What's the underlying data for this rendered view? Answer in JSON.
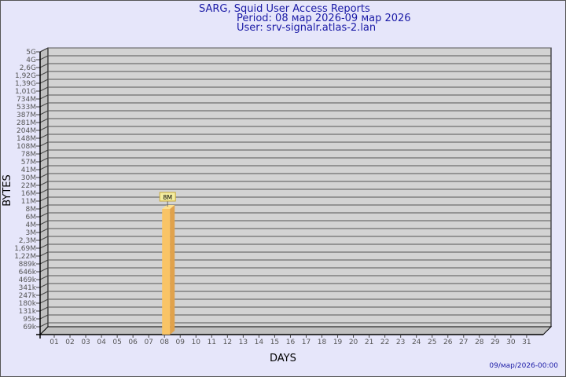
{
  "header": {
    "title": "SARG, Squid User Access Reports",
    "period": "Period: 08 мар 2026-09 мар 2026",
    "user": "User: srv-signalr.atlas-2.lan"
  },
  "footer": {
    "timestamp": "09/мар/2026-00:00"
  },
  "colors": {
    "background": "#e6e6fa",
    "plot": "#d3d3d3",
    "bar": "#f9c466",
    "bar_side": "#e0a24c",
    "text": "#1a1aa6"
  },
  "chart_data": {
    "type": "bar",
    "xlabel": "DAYS",
    "ylabel": "BYTES",
    "y_scale": "log",
    "y_tick_labels": [
      "5G",
      "4G",
      "2,6G",
      "1,92G",
      "1,39G",
      "1,01G",
      "734M",
      "533M",
      "387M",
      "281M",
      "204M",
      "148M",
      "108M",
      "78M",
      "57M",
      "41M",
      "30M",
      "22M",
      "16M",
      "11M",
      "8M",
      "6M",
      "4M",
      "3M",
      "2,3M",
      "1,69M",
      "1,22M",
      "889k",
      "646k",
      "469k",
      "341k",
      "247k",
      "180k",
      "131k",
      "95k",
      "69k"
    ],
    "categories": [
      "01",
      "02",
      "03",
      "04",
      "05",
      "06",
      "07",
      "08",
      "09",
      "10",
      "11",
      "12",
      "13",
      "14",
      "15",
      "16",
      "17",
      "18",
      "19",
      "20",
      "21",
      "22",
      "23",
      "24",
      "25",
      "26",
      "27",
      "28",
      "29",
      "30",
      "31"
    ],
    "bars": [
      {
        "day": "08",
        "value_label": "8M"
      }
    ]
  }
}
